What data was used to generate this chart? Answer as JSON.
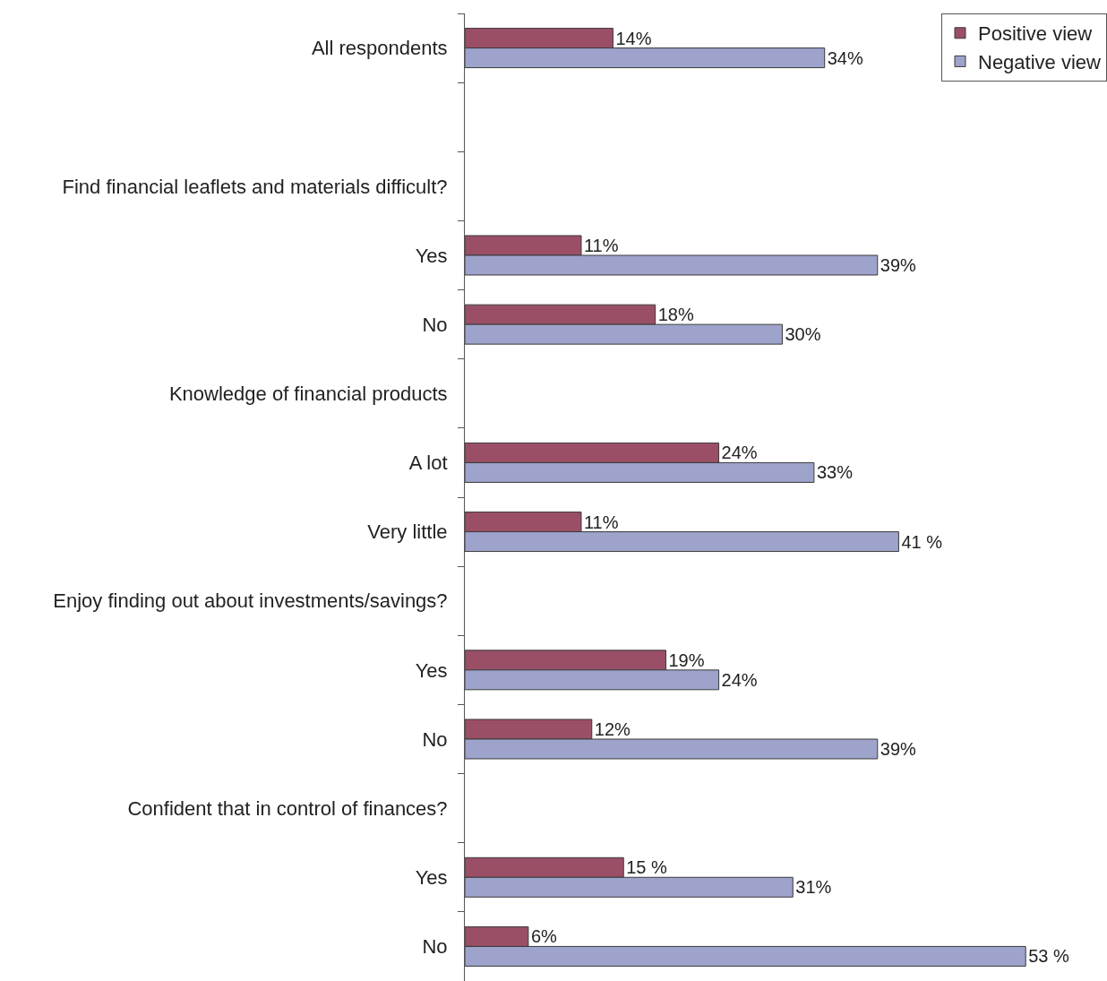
{
  "chart_data": {
    "type": "bar",
    "orientation": "horizontal",
    "categories": [
      "All respondents",
      null,
      "Find financial leaflets and materials difficult?",
      "Yes",
      "No",
      "Knowledge of financial products",
      "A lot",
      "Very little",
      "Enjoy finding out about investments/savings?",
      "Yes",
      "No",
      "Confident that in control of finances?",
      "Yes",
      "No"
    ],
    "series": [
      {
        "name": "Positive view",
        "color": "#9b4f67",
        "values": [
          14,
          null,
          null,
          11,
          18,
          null,
          24,
          11,
          null,
          19,
          12,
          null,
          15,
          6
        ],
        "value_labels": [
          "14%",
          null,
          null,
          "11%",
          "18%",
          null,
          "24%",
          "11%",
          null,
          "19%",
          "12%",
          null,
          "15 %",
          "6%"
        ]
      },
      {
        "name": "Negative view",
        "color": "#9da3cb",
        "values": [
          34,
          null,
          null,
          39,
          30,
          null,
          33,
          41,
          null,
          24,
          39,
          null,
          31,
          53
        ],
        "value_labels": [
          "34%",
          null,
          null,
          "39%",
          "30%",
          null,
          "33%",
          "41 %",
          null,
          "24%",
          "39%",
          null,
          "31%",
          "53 %"
        ]
      }
    ],
    "legend": "top right",
    "grid": false,
    "tick_labels": "y"
  }
}
